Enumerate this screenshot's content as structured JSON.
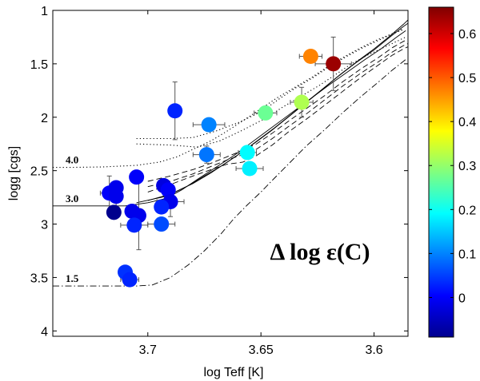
{
  "chart_data": {
    "type": "scatter",
    "title": "",
    "xlabel": "log Teff [K]",
    "ylabel": "logg [cgs]",
    "xlim": [
      3.742,
      3.585
    ],
    "ylim": [
      4.05,
      1.0
    ],
    "x_reversed": true,
    "y_reversed": true,
    "x_ticks": [
      3.7,
      3.65,
      3.6
    ],
    "x_tick_labels": [
      "3.7",
      "3.65",
      "3.6"
    ],
    "y_ticks": [
      1,
      1.5,
      2,
      2.5,
      3,
      3.5,
      4
    ],
    "y_tick_labels": [
      "1",
      "1.5",
      "2",
      "2.5",
      "3",
      "3.5",
      "4"
    ],
    "grid": false,
    "annotation": "Δ log ε(C)",
    "colorbar": {
      "min": -0.09,
      "max": 0.66,
      "ticks": [
        0,
        0.1,
        0.2,
        0.3,
        0.4,
        0.5,
        0.6
      ],
      "tick_labels": [
        "0",
        "0.1",
        "0.2",
        "0.3",
        "0.4",
        "0.5",
        "0.6"
      ]
    },
    "tracks": [
      {
        "label": "4.0",
        "style": "dotted",
        "points": [
          [
            3.742,
            2.47
          ],
          [
            3.735,
            2.47
          ],
          [
            3.72,
            2.465
          ],
          [
            3.705,
            2.45
          ],
          [
            3.695,
            2.42
          ],
          [
            3.687,
            2.37
          ],
          [
            3.68,
            2.3
          ],
          [
            3.672,
            2.22
          ],
          [
            3.665,
            2.13
          ],
          [
            3.657,
            2.02
          ],
          [
            3.65,
            1.92
          ],
          [
            3.643,
            1.82
          ],
          [
            3.635,
            1.72
          ],
          [
            3.627,
            1.62
          ],
          [
            3.62,
            1.52
          ],
          [
            3.612,
            1.42
          ],
          [
            3.605,
            1.34
          ],
          [
            3.598,
            1.27
          ],
          [
            3.592,
            1.22
          ],
          [
            3.587,
            1.17
          ]
        ]
      },
      {
        "label": "",
        "style": "dotted",
        "points": [
          [
            3.705,
            2.2
          ],
          [
            3.69,
            2.2
          ],
          [
            3.68,
            2.19
          ],
          [
            3.67,
            2.13
          ],
          [
            3.66,
            2.05
          ],
          [
            3.65,
            1.95
          ],
          [
            3.642,
            1.83
          ],
          [
            3.635,
            1.73
          ],
          [
            3.627,
            1.63
          ],
          [
            3.62,
            1.53
          ],
          [
            3.612,
            1.43
          ],
          [
            3.605,
            1.35
          ],
          [
            3.598,
            1.28
          ],
          [
            3.592,
            1.22
          ],
          [
            3.587,
            1.18
          ]
        ]
      },
      {
        "label": "",
        "style": "dotted",
        "points": [
          [
            3.705,
            2.25
          ],
          [
            3.69,
            2.26
          ],
          [
            3.678,
            2.28
          ],
          [
            3.668,
            2.22
          ],
          [
            3.658,
            2.12
          ],
          [
            3.648,
            2.01
          ],
          [
            3.64,
            1.9
          ],
          [
            3.632,
            1.8
          ],
          [
            3.624,
            1.7
          ],
          [
            3.617,
            1.6
          ],
          [
            3.61,
            1.5
          ],
          [
            3.603,
            1.42
          ],
          [
            3.596,
            1.35
          ],
          [
            3.59,
            1.29
          ],
          [
            3.586,
            1.25
          ]
        ]
      },
      {
        "label": "3.0",
        "style": "solid",
        "points": [
          [
            3.742,
            2.83
          ],
          [
            3.73,
            2.83
          ],
          [
            3.72,
            2.83
          ],
          [
            3.71,
            2.83
          ],
          [
            3.7,
            2.8
          ],
          [
            3.692,
            2.76
          ],
          [
            3.685,
            2.68
          ],
          [
            3.678,
            2.58
          ],
          [
            3.67,
            2.47
          ],
          [
            3.662,
            2.36
          ],
          [
            3.655,
            2.25
          ],
          [
            3.648,
            2.14
          ],
          [
            3.641,
            2.03
          ],
          [
            3.634,
            1.92
          ],
          [
            3.627,
            1.81
          ],
          [
            3.62,
            1.7
          ],
          [
            3.612,
            1.58
          ],
          [
            3.604,
            1.46
          ],
          [
            3.597,
            1.36
          ],
          [
            3.59,
            1.25
          ],
          [
            3.586,
            1.19
          ]
        ]
      },
      {
        "label": "",
        "style": "solid",
        "points": [
          [
            3.705,
            2.8
          ],
          [
            3.692,
            2.74
          ],
          [
            3.683,
            2.65
          ],
          [
            3.675,
            2.55
          ],
          [
            3.667,
            2.45
          ],
          [
            3.66,
            2.35
          ],
          [
            3.652,
            2.23
          ],
          [
            3.645,
            2.12
          ],
          [
            3.638,
            2.0
          ],
          [
            3.631,
            1.88
          ],
          [
            3.624,
            1.76
          ],
          [
            3.616,
            1.62
          ],
          [
            3.608,
            1.49
          ],
          [
            3.6,
            1.37
          ],
          [
            3.593,
            1.25
          ],
          [
            3.587,
            1.15
          ],
          [
            3.585,
            1.12
          ]
        ]
      },
      {
        "label": "",
        "style": "solid",
        "points": [
          [
            3.7,
            2.78
          ],
          [
            3.69,
            2.72
          ],
          [
            3.68,
            2.62
          ],
          [
            3.672,
            2.52
          ],
          [
            3.665,
            2.42
          ],
          [
            3.658,
            2.32
          ],
          [
            3.651,
            2.21
          ],
          [
            3.644,
            2.1
          ],
          [
            3.637,
            1.98
          ],
          [
            3.63,
            1.86
          ],
          [
            3.623,
            1.74
          ],
          [
            3.615,
            1.6
          ],
          [
            3.607,
            1.47
          ],
          [
            3.6,
            1.36
          ],
          [
            3.593,
            1.24
          ],
          [
            3.587,
            1.13
          ],
          [
            3.585,
            1.09
          ]
        ]
      },
      {
        "label": "",
        "style": "dashed",
        "points": [
          [
            3.7,
            2.7
          ],
          [
            3.69,
            2.63
          ],
          [
            3.68,
            2.55
          ],
          [
            3.672,
            2.49
          ],
          [
            3.665,
            2.44
          ],
          [
            3.658,
            2.42
          ],
          [
            3.652,
            2.36
          ],
          [
            3.645,
            2.26
          ],
          [
            3.638,
            2.14
          ],
          [
            3.63,
            2.02
          ],
          [
            3.622,
            1.89
          ],
          [
            3.614,
            1.76
          ],
          [
            3.606,
            1.63
          ],
          [
            3.598,
            1.51
          ],
          [
            3.592,
            1.42
          ],
          [
            3.587,
            1.36
          ],
          [
            3.585,
            1.34
          ]
        ]
      },
      {
        "label": "",
        "style": "dashed",
        "points": [
          [
            3.7,
            2.65
          ],
          [
            3.69,
            2.6
          ],
          [
            3.68,
            2.53
          ],
          [
            3.672,
            2.46
          ],
          [
            3.665,
            2.4
          ],
          [
            3.658,
            2.35
          ],
          [
            3.652,
            2.3
          ],
          [
            3.645,
            2.2
          ],
          [
            3.638,
            2.09
          ],
          [
            3.63,
            1.97
          ],
          [
            3.622,
            1.84
          ],
          [
            3.614,
            1.71
          ],
          [
            3.606,
            1.59
          ],
          [
            3.598,
            1.48
          ],
          [
            3.592,
            1.39
          ],
          [
            3.587,
            1.33
          ],
          [
            3.585,
            1.31
          ]
        ]
      },
      {
        "label": "",
        "style": "dashed",
        "points": [
          [
            3.7,
            2.6
          ],
          [
            3.69,
            2.55
          ],
          [
            3.68,
            2.49
          ],
          [
            3.672,
            2.43
          ],
          [
            3.665,
            2.37
          ],
          [
            3.658,
            2.31
          ],
          [
            3.652,
            2.25
          ],
          [
            3.645,
            2.15
          ],
          [
            3.638,
            2.04
          ],
          [
            3.63,
            1.92
          ],
          [
            3.622,
            1.8
          ],
          [
            3.614,
            1.67
          ],
          [
            3.606,
            1.55
          ],
          [
            3.598,
            1.44
          ],
          [
            3.592,
            1.35
          ],
          [
            3.587,
            1.29
          ],
          [
            3.585,
            1.27
          ]
        ]
      },
      {
        "label": "1.5",
        "style": "dashdot",
        "points": [
          [
            3.742,
            3.58
          ],
          [
            3.72,
            3.58
          ],
          [
            3.705,
            3.58
          ],
          [
            3.698,
            3.57
          ],
          [
            3.69,
            3.5
          ],
          [
            3.682,
            3.38
          ],
          [
            3.675,
            3.25
          ],
          [
            3.668,
            3.1
          ],
          [
            3.662,
            2.95
          ],
          [
            3.656,
            2.82
          ],
          [
            3.65,
            2.7
          ],
          [
            3.644,
            2.57
          ],
          [
            3.637,
            2.42
          ],
          [
            3.63,
            2.27
          ],
          [
            3.622,
            2.12
          ],
          [
            3.614,
            1.96
          ],
          [
            3.606,
            1.81
          ],
          [
            3.598,
            1.67
          ],
          [
            3.592,
            1.56
          ],
          [
            3.586,
            1.46
          ]
        ]
      }
    ],
    "points": [
      {
        "x": 3.717,
        "y": 2.71,
        "c": 0.0
      },
      {
        "x": 3.714,
        "y": 2.66,
        "c": -0.01
      },
      {
        "x": 3.714,
        "y": 2.74,
        "c": -0.01
      },
      {
        "x": 3.715,
        "y": 2.89,
        "c": -0.08
      },
      {
        "x": 3.707,
        "y": 2.88,
        "c": -0.01
      },
      {
        "x": 3.704,
        "y": 2.92,
        "c": -0.01
      },
      {
        "x": 3.706,
        "y": 3.01,
        "c": 0.03
      },
      {
        "x": 3.705,
        "y": 2.56,
        "c": 0.0
      },
      {
        "x": 3.693,
        "y": 2.64,
        "c": -0.02
      },
      {
        "x": 3.691,
        "y": 2.68,
        "c": 0.0
      },
      {
        "x": 3.69,
        "y": 2.79,
        "c": -0.01
      },
      {
        "x": 3.694,
        "y": 2.84,
        "c": 0.03
      },
      {
        "x": 3.694,
        "y": 3.0,
        "c": 0.06
      },
      {
        "x": 3.71,
        "y": 3.45,
        "c": 0.04
      },
      {
        "x": 3.708,
        "y": 3.52,
        "c": 0.03
      },
      {
        "x": 3.688,
        "y": 1.94,
        "c": 0.03
      },
      {
        "x": 3.673,
        "y": 2.07,
        "c": 0.1
      },
      {
        "x": 3.674,
        "y": 2.35,
        "c": 0.09
      },
      {
        "x": 3.656,
        "y": 2.33,
        "c": 0.19
      },
      {
        "x": 3.655,
        "y": 2.48,
        "c": 0.18
      },
      {
        "x": 3.648,
        "y": 1.96,
        "c": 0.27
      },
      {
        "x": 3.632,
        "y": 1.86,
        "c": 0.32
      },
      {
        "x": 3.628,
        "y": 1.43,
        "c": 0.47
      },
      {
        "x": 3.618,
        "y": 1.5,
        "c": 0.64
      }
    ],
    "errorbars": [
      {
        "x": 3.717,
        "y": 2.71,
        "dx": 0.004,
        "dy": 0.16
      },
      {
        "x": 3.714,
        "y": 2.74,
        "dx": 0.0,
        "dy": 0.14
      },
      {
        "x": 3.704,
        "y": 2.92,
        "dx": 0.0,
        "dy": 0.32
      },
      {
        "x": 3.706,
        "y": 3.01,
        "dx": 0.006,
        "dy": 0.0
      },
      {
        "x": 3.69,
        "y": 2.79,
        "dx": 0.006,
        "dy": 0.14
      },
      {
        "x": 3.694,
        "y": 3.0,
        "dx": 0.006,
        "dy": 0.0
      },
      {
        "x": 3.708,
        "y": 3.52,
        "dx": 0.004,
        "dy": 0.0
      },
      {
        "x": 3.688,
        "y": 1.94,
        "dx": 0.0,
        "dy": 0.27
      },
      {
        "x": 3.673,
        "y": 2.07,
        "dx": 0.007,
        "dy": 0.0
      },
      {
        "x": 3.674,
        "y": 2.35,
        "dx": 0.006,
        "dy": 0.08
      },
      {
        "x": 3.656,
        "y": 2.33,
        "dx": 0.004,
        "dy": 0.0
      },
      {
        "x": 3.655,
        "y": 2.48,
        "dx": 0.006,
        "dy": 0.0
      },
      {
        "x": 3.648,
        "y": 1.96,
        "dx": 0.005,
        "dy": 0.0
      },
      {
        "x": 3.632,
        "y": 1.86,
        "dx": 0.005,
        "dy": 0.14
      },
      {
        "x": 3.628,
        "y": 1.43,
        "dx": 0.005,
        "dy": 0.0
      },
      {
        "x": 3.618,
        "y": 1.5,
        "dx": 0.008,
        "dy": 0.25
      }
    ]
  }
}
